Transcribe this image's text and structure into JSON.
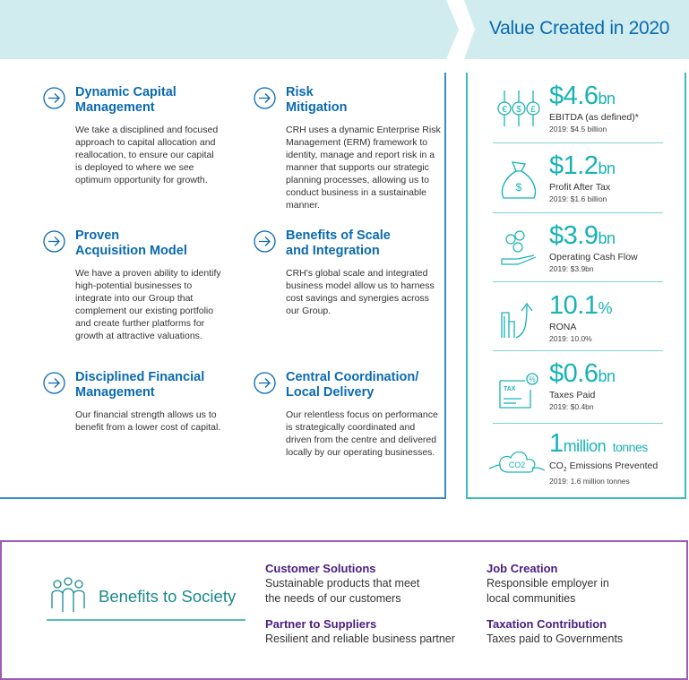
{
  "header": {
    "title": "Value Created in 2020"
  },
  "strategy": [
    {
      "title1": "Dynamic Capital",
      "title2": "Management",
      "text": "We take a disciplined and focused approach to capital allocation and reallocation, to ensure our capital is deployed to where we see optimum opportunity for growth."
    },
    {
      "title1": "Risk",
      "title2": "Mitigation",
      "text": "CRH uses a dynamic Enterprise Risk Management (ERM) framework to identity, manage and report risk in a manner that supports our strategic planning processes, allowing us to conduct business in a sustainable manner."
    },
    {
      "title1": "Proven",
      "title2": "Acquisition Model",
      "text": "We have a proven ability to identify high-potential businesses to integrate into our Group that complement our existing portfolio and create further platforms for growth at attractive valuations."
    },
    {
      "title1": "Benefits of Scale",
      "title2": "and Integration",
      "text": "CRH's global scale and integrated business model allow us to harness cost savings and synergies across our Group."
    },
    {
      "title1": "Disciplined Financial",
      "title2": "Management",
      "text": "Our financial strength allows us to benefit from a lower cost of capital."
    },
    {
      "title1": "Central Coordination/",
      "title2": "Local Delivery",
      "text": "Our relentless focus on performance is strategically coordinated and driven from the centre and delivered locally by our operating businesses."
    }
  ],
  "kpis": [
    {
      "value": "$4.6",
      "unit": "bn",
      "label": "EBITDA (as defined)*",
      "prior": "2019: $4.5 billion",
      "icon": "currency-coins-icon"
    },
    {
      "value": "$1.2",
      "unit": "bn",
      "label": "Profit After Tax",
      "prior": "2019: $1.6 billion",
      "icon": "money-bag-icon"
    },
    {
      "value": "$3.9",
      "unit": "bn",
      "label": "Operating Cash Flow",
      "prior": "2019: $3.9bn",
      "icon": "hand-coins-icon"
    },
    {
      "value": "10.1",
      "unit": "%",
      "label": "RONA",
      "prior": "2019: 10.0%",
      "icon": "buildings-arrow-icon"
    },
    {
      "value": "$0.6",
      "unit": "bn",
      "label": "Taxes Paid",
      "prior": "2019: $0.4bn",
      "icon": "tax-document-icon"
    },
    {
      "value": "1",
      "unit": "million",
      "unit2": "tonnes",
      "label_pre": "CO",
      "label_sub": "2",
      "label": " Emissions Prevented",
      "prior": "2019: 1.6 million tonnes",
      "icon": "co2-cloud-icon",
      "icon_text": "CO2"
    }
  ],
  "society": {
    "title": "Benefits to Society",
    "items": [
      {
        "title": "Customer Solutions",
        "line1": "Sustainable products that meet",
        "line2": "the needs of our customers"
      },
      {
        "title": "Job Creation",
        "line1": "Responsible employer in",
        "line2": "local communities"
      },
      {
        "title": "Partner to Suppliers",
        "line1": "Resilient and reliable business partner"
      },
      {
        "title": "Taxation Contribution",
        "line1": "Taxes paid to Governments"
      }
    ]
  },
  "colors": {
    "banner": "#d0ecee",
    "blue": "#0a6ab0",
    "teal": "#19b2b6",
    "purple": "#4a2080"
  }
}
